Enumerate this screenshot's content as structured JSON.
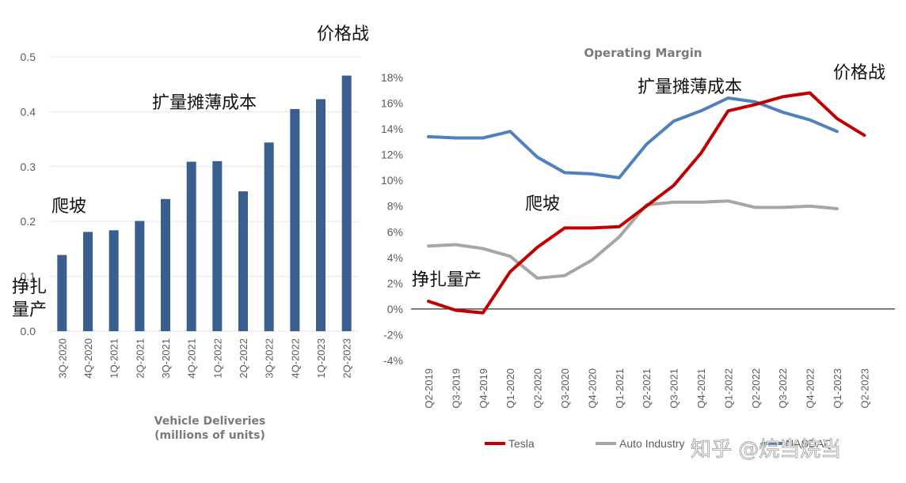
{
  "annotations_left": {
    "price_war": "价格战",
    "scale_cost": "扩量摊薄成本",
    "climb": "爬坡",
    "struggle_line1": "挣扎",
    "struggle_line2": "量产"
  },
  "annotations_right": {
    "price_war": "价格战",
    "scale_cost": "扩量摊薄成本",
    "climb": "爬坡",
    "struggle": "挣扎量产"
  },
  "watermark": "知乎 @烷当烷当",
  "chart_data": [
    {
      "type": "bar",
      "title": "",
      "xlabel_line1": "Vehicle Deliveries",
      "xlabel_line2": "(millions of units)",
      "ylabel": "",
      "categories": [
        "3Q-2020",
        "4Q-2020",
        "1Q-2021",
        "2Q-2021",
        "3Q-2021",
        "4Q-2021",
        "1Q-2022",
        "2Q-2022",
        "3Q-2022",
        "4Q-2022",
        "1Q-2023",
        "2Q-2023"
      ],
      "values": [
        0.139,
        0.181,
        0.184,
        0.201,
        0.241,
        0.309,
        0.31,
        0.255,
        0.344,
        0.405,
        0.423,
        0.466
      ],
      "yticks": [
        "0.0",
        "0.1",
        "0.2",
        "0.3",
        "0.4",
        "0.5"
      ],
      "ylim": [
        0,
        0.5
      ],
      "bar_color": "#3a5f8f"
    },
    {
      "type": "line",
      "title": "Operating Margin",
      "xlabel": "",
      "ylabel": "",
      "categories": [
        "Q2-2019",
        "Q3-2019",
        "Q4-2019",
        "Q1-2020",
        "Q2-2020",
        "Q3-2020",
        "Q4-2020",
        "Q1-2021",
        "Q2-2021",
        "Q3-2021",
        "Q4-2021",
        "Q1-2022",
        "Q2-2022",
        "Q3-2022",
        "Q4-2022",
        "Q1-2023",
        "Q2-2023"
      ],
      "yticks": [
        "18%",
        "16%",
        "14%",
        "12%",
        "10%",
        "8%",
        "6%",
        "4%",
        "2%",
        "0%",
        "-2%",
        "-4%"
      ],
      "ylim": [
        -4,
        18
      ],
      "series": [
        {
          "name": "Tesla",
          "color": "#c00000",
          "values": [
            0.6,
            -0.1,
            -0.3,
            2.9,
            4.8,
            6.3,
            6.3,
            6.4,
            8.0,
            9.6,
            12.1,
            15.4,
            15.9,
            16.5,
            16.8,
            14.8,
            13.5
          ]
        },
        {
          "name": "Auto Industry",
          "color": "#a6a6a6",
          "values": [
            4.9,
            5.0,
            4.7,
            4.1,
            2.4,
            2.6,
            3.8,
            5.6,
            8.1,
            8.3,
            8.3,
            8.4,
            7.9,
            7.9,
            8.0,
            7.8,
            null
          ]
        },
        {
          "name": "NASDAQ",
          "color": "#4f81bd",
          "values": [
            13.4,
            13.3,
            13.3,
            13.8,
            11.8,
            10.6,
            10.5,
            10.2,
            12.8,
            14.6,
            15.4,
            16.4,
            16.1,
            15.3,
            14.7,
            13.8,
            null
          ]
        }
      ],
      "legend_position": "bottom"
    }
  ]
}
